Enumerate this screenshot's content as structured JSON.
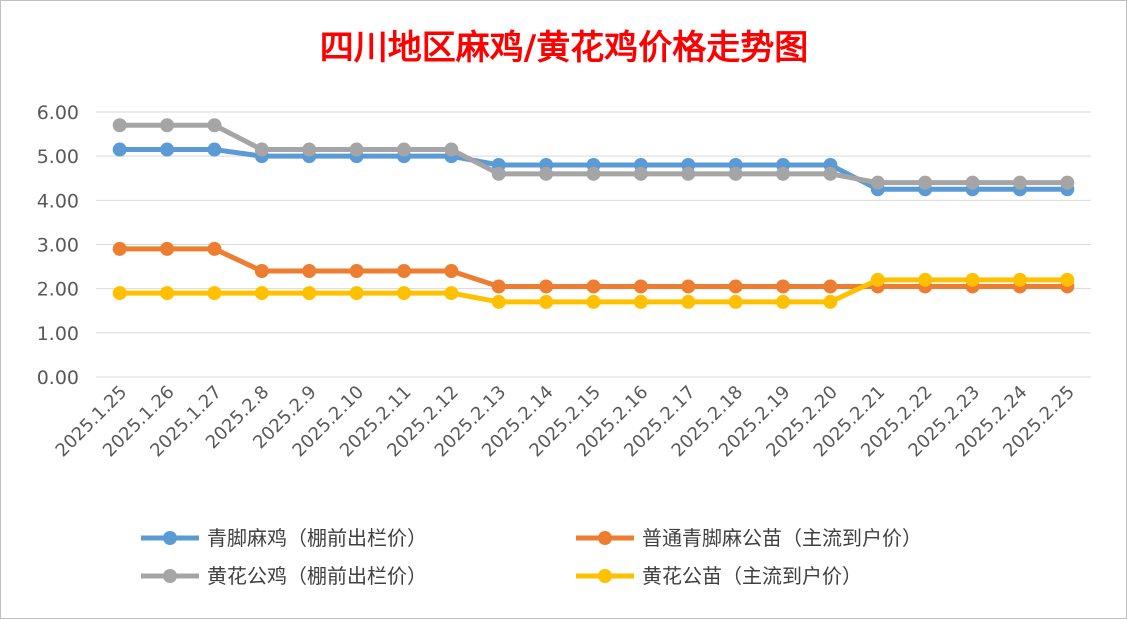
{
  "chart_data": {
    "type": "line",
    "title": "四川地区麻鸡/黄花鸡价格走势图",
    "ylim": [
      0,
      6
    ],
    "yticks": [
      "0.00",
      "1.00",
      "2.00",
      "3.00",
      "4.00",
      "5.00",
      "6.00"
    ],
    "grid": true,
    "legend_position": "bottom",
    "categories": [
      "2025.1.25",
      "2025.1.26",
      "2025.1.27",
      "2025.2.8",
      "2025.2.9",
      "2025.2.10",
      "2025.2.11",
      "2025.2.12",
      "2025.2.13",
      "2025.2.14",
      "2025.2.15",
      "2025.2.16",
      "2025.2.17",
      "2025.2.18",
      "2025.2.19",
      "2025.2.20",
      "2025.2.21",
      "2025.2.22",
      "2025.2.23",
      "2025.2.24",
      "2025.2.25"
    ],
    "series": [
      {
        "name": "青脚麻鸡（棚前出栏价）",
        "color": "#5b9bd5",
        "values": [
          5.15,
          5.15,
          5.15,
          5.0,
          5.0,
          5.0,
          5.0,
          5.0,
          4.8,
          4.8,
          4.8,
          4.8,
          4.8,
          4.8,
          4.8,
          4.8,
          4.25,
          4.25,
          4.25,
          4.25,
          4.25
        ]
      },
      {
        "name": "普通青脚麻公苗（主流到户价）",
        "color": "#ed7d31",
        "values": [
          2.9,
          2.9,
          2.9,
          2.4,
          2.4,
          2.4,
          2.4,
          2.4,
          2.05,
          2.05,
          2.05,
          2.05,
          2.05,
          2.05,
          2.05,
          2.05,
          2.05,
          2.05,
          2.05,
          2.05,
          2.05
        ]
      },
      {
        "name": "黄花公鸡（棚前出栏价）",
        "color": "#a5a5a5",
        "values": [
          5.7,
          5.7,
          5.7,
          5.15,
          5.15,
          5.15,
          5.15,
          5.15,
          4.6,
          4.6,
          4.6,
          4.6,
          4.6,
          4.6,
          4.6,
          4.6,
          4.4,
          4.4,
          4.4,
          4.4,
          4.4
        ]
      },
      {
        "name": "黄花公苗（主流到户价）",
        "color": "#ffc000",
        "values": [
          1.9,
          1.9,
          1.9,
          1.9,
          1.9,
          1.9,
          1.9,
          1.9,
          1.7,
          1.7,
          1.7,
          1.7,
          1.7,
          1.7,
          1.7,
          1.7,
          2.2,
          2.2,
          2.2,
          2.2,
          2.2
        ]
      }
    ]
  }
}
